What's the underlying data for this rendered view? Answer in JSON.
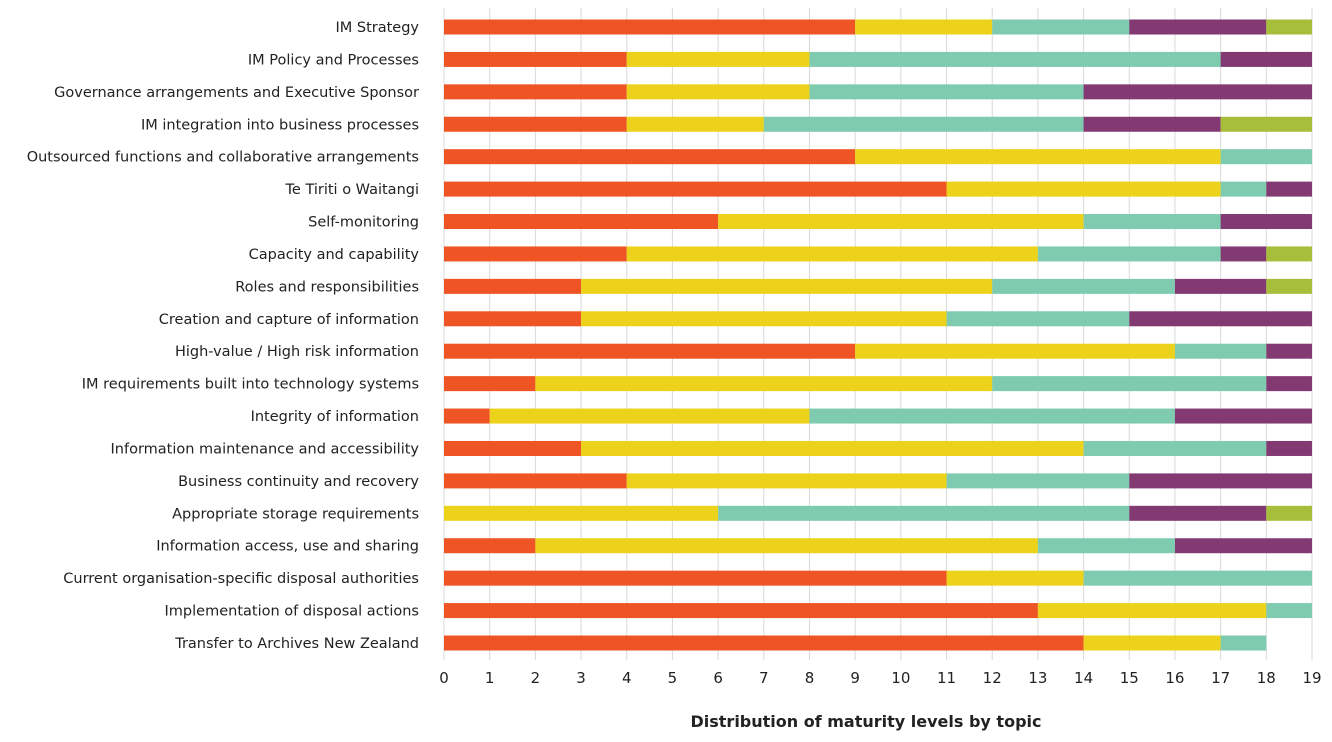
{
  "chart_data": {
    "type": "bar",
    "orientation": "horizontal",
    "stacked": true,
    "title": "",
    "xlabel": "Distribution of maturity levels by topic",
    "ylabel": "",
    "xlim": [
      0,
      19
    ],
    "xticks": [
      "0",
      "1",
      "2",
      "3",
      "4",
      "5",
      "6",
      "7",
      "8",
      "9",
      "10",
      "11",
      "12",
      "13",
      "14",
      "15",
      "16",
      "17",
      "18",
      "19"
    ],
    "grid": true,
    "legend": "none",
    "categories": [
      "IM Strategy",
      "IM Policy and Processes",
      "Governance arrangements and Executive Sponsor",
      "IM integration into business processes",
      "Outsourced functions and collaborative arrangements",
      "Te Tiriti o Waitangi",
      "Self-monitoring",
      "Capacity and capability",
      "Roles and responsibilities",
      "Creation and capture of information",
      "High-value / High risk information",
      "IM requirements built into technology systems",
      "Integrity of information",
      "Information maintenance and accessibility",
      "Business continuity and recovery",
      "Appropriate storage requirements",
      "Information access, use and sharing",
      "Current organisation-specific disposal authorities",
      "Implementation of disposal actions",
      "Transfer to Archives New Zealand"
    ],
    "series": [
      {
        "color": "#EE5424",
        "values": [
          9,
          4,
          4,
          4,
          9,
          11,
          6,
          4,
          3,
          3,
          9,
          2,
          1,
          3,
          4,
          0,
          2,
          11,
          13,
          14
        ]
      },
      {
        "color": "#EDD21B",
        "values": [
          3,
          4,
          4,
          3,
          8,
          6,
          8,
          9,
          9,
          8,
          7,
          10,
          7,
          11,
          7,
          6,
          11,
          3,
          5,
          3
        ]
      },
      {
        "color": "#7ECBB0",
        "values": [
          3,
          9,
          6,
          7,
          2,
          1,
          3,
          4,
          4,
          4,
          2,
          6,
          8,
          4,
          4,
          9,
          3,
          5,
          1,
          1
        ]
      },
      {
        "color": "#833A73",
        "values": [
          3,
          2,
          5,
          3,
          0,
          1,
          2,
          1,
          2,
          4,
          1,
          1,
          3,
          1,
          4,
          3,
          3,
          0,
          0,
          0
        ]
      },
      {
        "color": "#A6BE3A",
        "values": [
          1,
          0,
          0,
          2,
          0,
          0,
          0,
          1,
          1,
          0,
          0,
          0,
          0,
          0,
          0,
          1,
          0,
          0,
          0,
          0
        ]
      }
    ]
  }
}
